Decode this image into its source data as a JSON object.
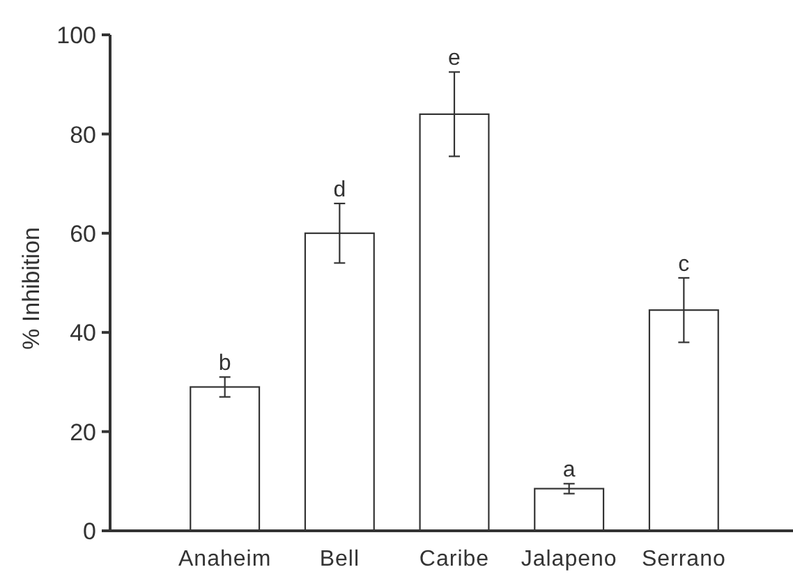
{
  "chart_data": {
    "type": "bar",
    "ylabel": "% Inhibition",
    "categories": [
      "Anaheim",
      "Bell",
      "Caribe",
      "Jalapeno",
      "Serrano"
    ],
    "values": [
      29,
      60,
      84,
      8.5,
      44.5
    ],
    "errors": [
      2,
      6,
      8.5,
      1,
      6.5
    ],
    "color": "#ffffff",
    "ylim": [
      0,
      100
    ],
    "yticks": [
      0,
      20,
      40,
      60,
      80,
      100
    ],
    "annotations": [
      {
        "text": "b",
        "x": "Anaheim",
        "y": 31
      },
      {
        "text": "d",
        "x": "Bell",
        "y": 66
      },
      {
        "text": "e",
        "x": "Caribe",
        "y": 92.5
      },
      {
        "text": "a",
        "x": "Jalapeno",
        "y": 9.5
      },
      {
        "text": "c",
        "x": "Serrano",
        "y": 51
      }
    ]
  }
}
